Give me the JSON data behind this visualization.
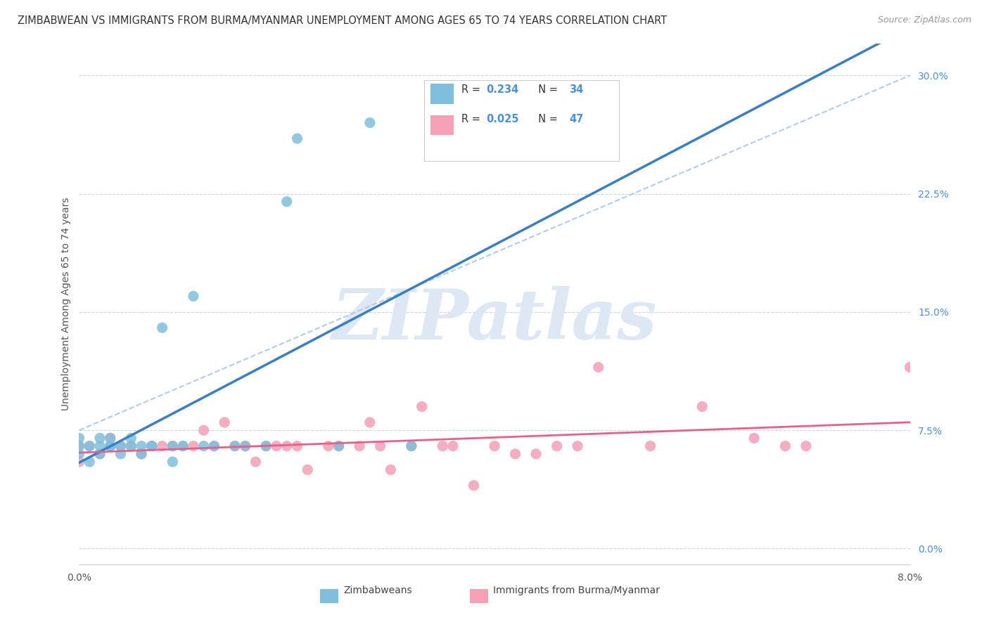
{
  "title": "ZIMBABWEAN VS IMMIGRANTS FROM BURMA/MYANMAR UNEMPLOYMENT AMONG AGES 65 TO 74 YEARS CORRELATION CHART",
  "source": "Source: ZipAtlas.com",
  "ylabel": "Unemployment Among Ages 65 to 74 years",
  "xlabel_zimbabwean": "Zimbabweans",
  "xlabel_burma": "Immigrants from Burma/Myanmar",
  "xlim": [
    0.0,
    0.08
  ],
  "ylim": [
    -0.01,
    0.32
  ],
  "yticks": [
    0.0,
    0.075,
    0.15,
    0.225,
    0.3
  ],
  "ytick_labels": [
    "0.0%",
    "7.5%",
    "15.0%",
    "22.5%",
    "30.0%"
  ],
  "xticks": [
    0.0,
    0.08
  ],
  "xtick_labels": [
    "0.0%",
    "8.0%"
  ],
  "color_zim": "#7fbfdd",
  "color_burma": "#f4a0b5",
  "color_zim_line": "#3a7fc1",
  "color_burma_line": "#e8608a",
  "color_dash": "#a8c8e8",
  "watermark_text": "ZIPatlas",
  "watermark_color": "#dde8f4",
  "background_color": "#ffffff",
  "grid_color": "#c8d8ec",
  "title_fontsize": 10.5,
  "source_fontsize": 9,
  "label_fontsize": 10,
  "tick_fontsize": 10,
  "legend_R1": "0.234",
  "legend_N1": "34",
  "legend_R2": "0.025",
  "legend_N2": "47",
  "zim_x": [
    0.0,
    0.0,
    0.0,
    0.001,
    0.001,
    0.002,
    0.002,
    0.002,
    0.003,
    0.003,
    0.003,
    0.004,
    0.004,
    0.005,
    0.005,
    0.006,
    0.006,
    0.007,
    0.007,
    0.008,
    0.009,
    0.009,
    0.01,
    0.011,
    0.012,
    0.013,
    0.015,
    0.016,
    0.018,
    0.02,
    0.021,
    0.025,
    0.028,
    0.032
  ],
  "zim_y": [
    0.06,
    0.065,
    0.07,
    0.065,
    0.055,
    0.07,
    0.065,
    0.06,
    0.065,
    0.07,
    0.065,
    0.06,
    0.065,
    0.065,
    0.07,
    0.065,
    0.06,
    0.065,
    0.065,
    0.14,
    0.055,
    0.065,
    0.065,
    0.16,
    0.065,
    0.065,
    0.065,
    0.065,
    0.065,
    0.22,
    0.26,
    0.065,
    0.27,
    0.065
  ],
  "burma_x": [
    0.0,
    0.0,
    0.001,
    0.002,
    0.003,
    0.004,
    0.005,
    0.006,
    0.007,
    0.008,
    0.009,
    0.01,
    0.011,
    0.012,
    0.013,
    0.014,
    0.015,
    0.016,
    0.017,
    0.018,
    0.019,
    0.02,
    0.021,
    0.022,
    0.024,
    0.025,
    0.027,
    0.028,
    0.029,
    0.03,
    0.032,
    0.033,
    0.035,
    0.036,
    0.038,
    0.04,
    0.042,
    0.044,
    0.046,
    0.048,
    0.05,
    0.055,
    0.06,
    0.065,
    0.068,
    0.07,
    0.08
  ],
  "burma_y": [
    0.065,
    0.055,
    0.065,
    0.06,
    0.07,
    0.065,
    0.065,
    0.06,
    0.065,
    0.065,
    0.065,
    0.065,
    0.065,
    0.075,
    0.065,
    0.08,
    0.065,
    0.065,
    0.055,
    0.065,
    0.065,
    0.065,
    0.065,
    0.05,
    0.065,
    0.065,
    0.065,
    0.08,
    0.065,
    0.05,
    0.065,
    0.09,
    0.065,
    0.065,
    0.04,
    0.065,
    0.06,
    0.06,
    0.065,
    0.065,
    0.115,
    0.065,
    0.09,
    0.07,
    0.065,
    0.065,
    0.115
  ]
}
